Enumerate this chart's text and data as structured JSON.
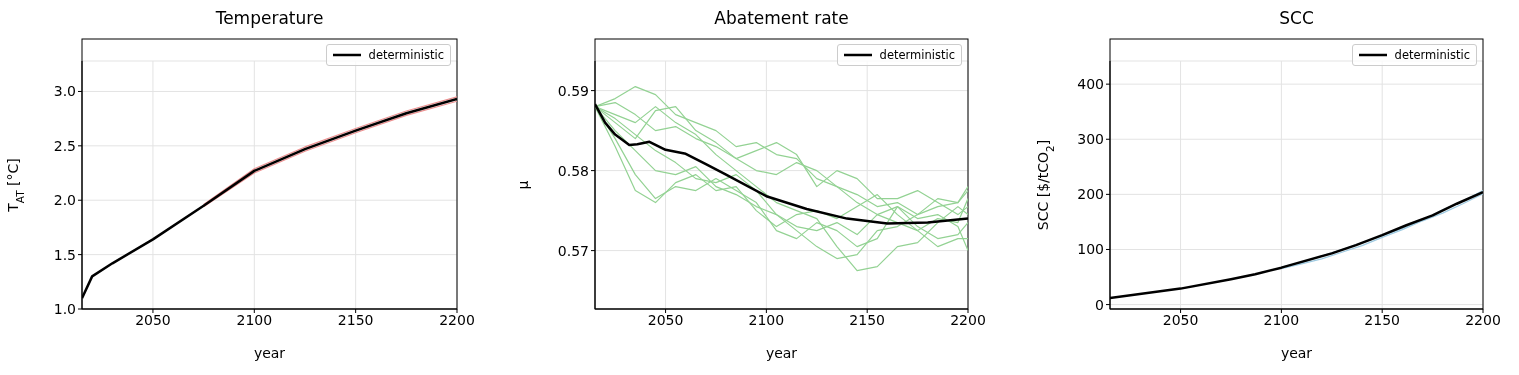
{
  "chart_data": [
    {
      "type": "line",
      "title": "Temperature",
      "xlabel": "year",
      "ylabel": "T$_{AT}$ [°C]",
      "xlim": [
        2015,
        2200
      ],
      "xticks": [
        2050,
        2100,
        2150,
        2200
      ],
      "ylim": [
        1.0,
        3.28
      ],
      "yticks": [
        {
          "value": 1,
          "label": "1.0"
        },
        1.5,
        {
          "value": 2,
          "label": "2.0"
        },
        2.5,
        {
          "value": 3,
          "label": "3.0"
        }
      ],
      "grid": true,
      "legend": "top right",
      "series": [
        {
          "color": "#ec8f8f",
          "x": [
            2075,
            2100,
            2125,
            2150,
            2175,
            2200
          ],
          "values": [
            1.96,
            2.29,
            2.49,
            2.66,
            2.82,
            2.95
          ]
        },
        {
          "color": "#ec8f8f",
          "x": [
            2075,
            2100,
            2125,
            2150,
            2175,
            2200
          ],
          "values": [
            1.94,
            2.25,
            2.45,
            2.62,
            2.78,
            2.91
          ]
        },
        {
          "name": "deterministic",
          "color": "#000000",
          "x": [
            2015,
            2020,
            2030,
            2050,
            2075,
            2100,
            2125,
            2150,
            2175,
            2200
          ],
          "values": [
            1.1,
            1.3,
            1.42,
            1.64,
            1.95,
            2.27,
            2.47,
            2.64,
            2.8,
            2.93
          ]
        }
      ]
    },
    {
      "type": "line",
      "title": "Abatement rate",
      "xlabel": "year",
      "ylabel": "μ",
      "xlim": [
        2015,
        2200
      ],
      "xticks": [
        2050,
        2100,
        2150,
        2200
      ],
      "ylim": [
        0.5627,
        0.5937
      ],
      "yticks": [
        0.57,
        0.58,
        0.59
      ],
      "grid": true,
      "legend": "top right",
      "series": [
        {
          "color": "#93d293",
          "x": [
            2015,
            2025,
            2035,
            2045,
            2055,
            2065,
            2075,
            2085,
            2095,
            2105,
            2115,
            2125,
            2135,
            2145,
            2155,
            2165,
            2175,
            2185,
            2195,
            2200
          ],
          "values": [
            0.588,
            0.589,
            0.5905,
            0.5895,
            0.587,
            0.586,
            0.585,
            0.583,
            0.5835,
            0.582,
            0.5815,
            0.579,
            0.578,
            0.577,
            0.5755,
            0.576,
            0.5745,
            0.5755,
            0.576,
            0.5775
          ]
        },
        {
          "color": "#93d293",
          "x": [
            2015,
            2025,
            2035,
            2045,
            2055,
            2065,
            2075,
            2085,
            2095,
            2105,
            2115,
            2125,
            2135,
            2145,
            2155,
            2165,
            2175,
            2185,
            2195,
            2200
          ],
          "values": [
            0.588,
            0.586,
            0.584,
            0.5875,
            0.588,
            0.585,
            0.5835,
            0.5815,
            0.58,
            0.5795,
            0.581,
            0.58,
            0.578,
            0.576,
            0.5745,
            0.5735,
            0.5725,
            0.574,
            0.5735,
            0.5765
          ]
        },
        {
          "color": "#93d293",
          "x": [
            2015,
            2025,
            2035,
            2045,
            2055,
            2065,
            2075,
            2085,
            2095,
            2105,
            2115,
            2125,
            2135,
            2145,
            2155,
            2165,
            2175,
            2185,
            2195,
            2200
          ],
          "values": [
            0.588,
            0.585,
            0.5825,
            0.58,
            0.5795,
            0.5805,
            0.578,
            0.577,
            0.5755,
            0.5745,
            0.573,
            0.5725,
            0.5735,
            0.572,
            0.5745,
            0.5755,
            0.573,
            0.5715,
            0.572,
            0.5735
          ]
        },
        {
          "color": "#93d293",
          "x": [
            2015,
            2025,
            2035,
            2045,
            2055,
            2065,
            2075,
            2085,
            2095,
            2105,
            2115,
            2125,
            2135,
            2145,
            2155,
            2165,
            2175,
            2185,
            2195,
            2200
          ],
          "values": [
            0.588,
            0.584,
            0.5795,
            0.5765,
            0.578,
            0.5775,
            0.579,
            0.5775,
            0.576,
            0.5725,
            0.5715,
            0.5735,
            0.5725,
            0.5705,
            0.5715,
            0.5755,
            0.574,
            0.5745,
            0.573,
            0.57
          ]
        },
        {
          "color": "#93d293",
          "x": [
            2015,
            2025,
            2035,
            2045,
            2055,
            2065,
            2075,
            2085,
            2095,
            2105,
            2115,
            2125,
            2135,
            2145,
            2155,
            2165,
            2175,
            2185,
            2195,
            2200
          ],
          "values": [
            0.588,
            0.587,
            0.586,
            0.588,
            0.586,
            0.5845,
            0.582,
            0.58,
            0.578,
            0.576,
            0.575,
            0.574,
            0.5705,
            0.5675,
            0.568,
            0.5705,
            0.571,
            0.5735,
            0.5755,
            0.5745
          ]
        },
        {
          "color": "#93d293",
          "x": [
            2015,
            2025,
            2035,
            2045,
            2055,
            2065,
            2075,
            2085,
            2095,
            2105,
            2115,
            2125,
            2135,
            2145,
            2155,
            2165,
            2175,
            2185,
            2195,
            2200
          ],
          "values": [
            0.588,
            0.5865,
            0.5845,
            0.5825,
            0.581,
            0.579,
            0.5785,
            0.5795,
            0.5775,
            0.5745,
            0.5725,
            0.5705,
            0.569,
            0.5695,
            0.5725,
            0.573,
            0.5745,
            0.5765,
            0.576,
            0.578
          ]
        },
        {
          "color": "#93d293",
          "x": [
            2015,
            2025,
            2035,
            2045,
            2055,
            2065,
            2075,
            2085,
            2095,
            2105,
            2115,
            2125,
            2135,
            2145,
            2155,
            2165,
            2175,
            2185,
            2195,
            2200
          ],
          "values": [
            0.588,
            0.583,
            0.5775,
            0.576,
            0.5785,
            0.5795,
            0.5775,
            0.578,
            0.575,
            0.573,
            0.5745,
            0.575,
            0.574,
            0.5755,
            0.577,
            0.5745,
            0.5725,
            0.5705,
            0.5715,
            0.5715
          ]
        },
        {
          "color": "#93d293",
          "x": [
            2015,
            2025,
            2035,
            2045,
            2055,
            2065,
            2075,
            2085,
            2095,
            2105,
            2115,
            2125,
            2135,
            2145,
            2155,
            2165,
            2175,
            2185,
            2195,
            2200
          ],
          "values": [
            0.588,
            0.5885,
            0.587,
            0.585,
            0.5855,
            0.584,
            0.583,
            0.5815,
            0.5825,
            0.5835,
            0.582,
            0.578,
            0.58,
            0.579,
            0.5765,
            0.5765,
            0.5775,
            0.576,
            0.5745,
            0.5755
          ]
        },
        {
          "name": "deterministic",
          "color": "#000000",
          "x": [
            2015,
            2020,
            2025,
            2032,
            2036,
            2042,
            2050,
            2060,
            2070,
            2080,
            2100,
            2120,
            2140,
            2160,
            2180,
            2200
          ],
          "values": [
            0.5883,
            0.586,
            0.5845,
            0.5832,
            0.5833,
            0.5836,
            0.5826,
            0.5821,
            0.5808,
            0.5795,
            0.5768,
            0.5752,
            0.574,
            0.5734,
            0.5735,
            0.574
          ]
        }
      ]
    },
    {
      "type": "line",
      "title": "SCC",
      "xlabel": "year",
      "ylabel": "SCC [$/tCO$_{2}$]",
      "xlim": [
        2015,
        2200
      ],
      "xticks": [
        2050,
        2100,
        2150,
        2200
      ],
      "ylim": [
        -8,
        442
      ],
      "yticks": [
        0,
        100,
        200,
        300,
        400
      ],
      "grid": true,
      "legend": "top right",
      "series": [
        {
          "color": "#9ecae1",
          "x": [
            2100,
            2110,
            2120,
            2130,
            2140,
            2150,
            2160,
            2170,
            2180,
            2190,
            2200
          ],
          "values": [
            68,
            76,
            88,
            100,
            112,
            125,
            138,
            153,
            172,
            188,
            207
          ]
        },
        {
          "color": "#9ecae1",
          "x": [
            2100,
            2110,
            2120,
            2130,
            2140,
            2150,
            2160,
            2170,
            2180,
            2190,
            2200
          ],
          "values": [
            65,
            74,
            83,
            95,
            107,
            122,
            136,
            152,
            166,
            183,
            201
          ]
        },
        {
          "name": "deterministic",
          "color": "#000000",
          "x": [
            2015,
            2050,
            2075,
            2087,
            2100,
            2125,
            2137,
            2150,
            2162,
            2175,
            2187,
            2200
          ],
          "values": [
            12,
            29,
            46,
            55,
            67,
            93,
            108,
            126,
            144,
            162,
            183,
            204
          ]
        }
      ]
    }
  ]
}
